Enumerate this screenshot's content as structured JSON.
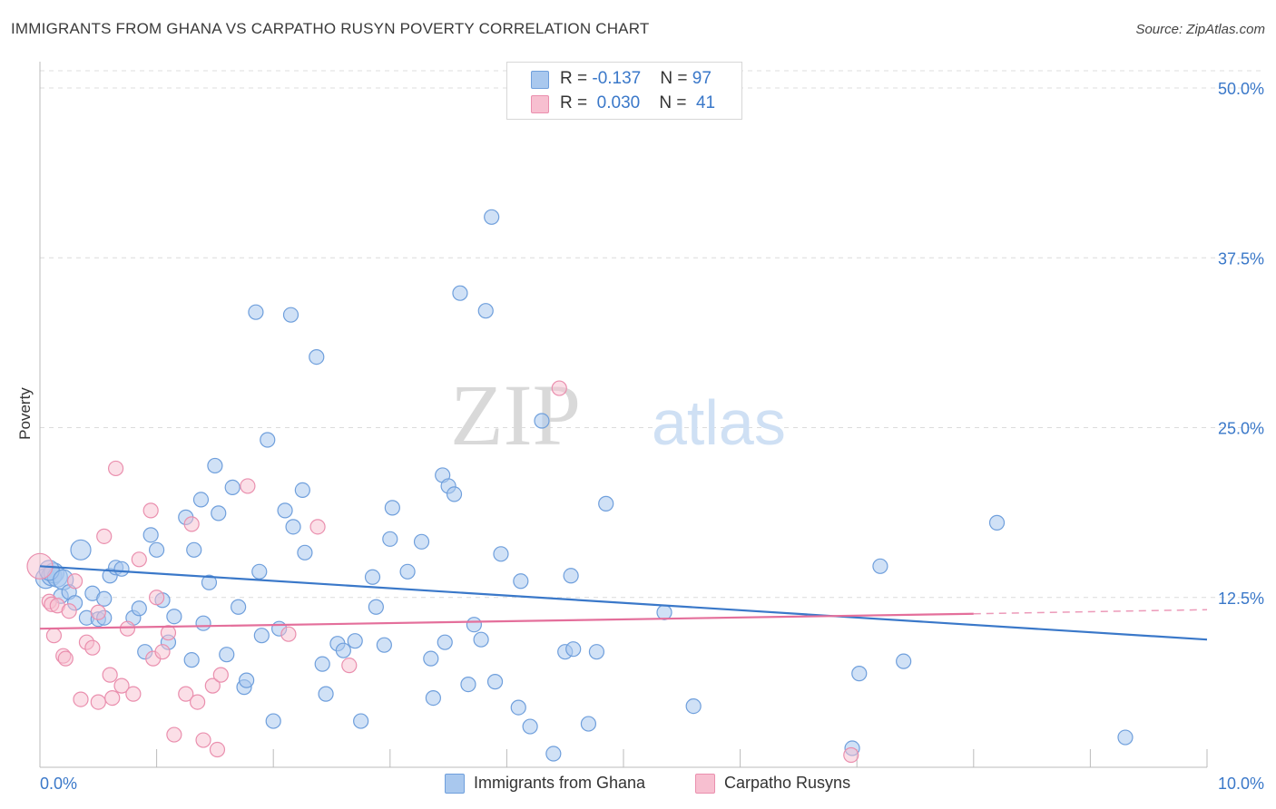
{
  "header": {
    "title": "IMMIGRANTS FROM GHANA VS CARPATHO RUSYN POVERTY CORRELATION CHART",
    "source": "Source: ZipAtlas.com"
  },
  "watermark": {
    "part1": "ZIP",
    "part2": "atlas"
  },
  "legend_top": {
    "rows": [
      {
        "r_label": "R = ",
        "r_value": "-0.137",
        "n_label": "N = ",
        "n_value": "97"
      },
      {
        "r_label": "R = ",
        "r_value": "0.030",
        "n_label": "N = ",
        "n_value": "41"
      }
    ]
  },
  "legend_bottom": {
    "items": [
      {
        "label": "Immigrants from Ghana"
      },
      {
        "label": "Carpatho Rusyns"
      }
    ]
  },
  "colors": {
    "blue_fill": "#a9c8ee",
    "blue_stroke": "#6f9fdc",
    "blue_line": "#3a78c9",
    "pink_fill": "#f7bfd0",
    "pink_stroke": "#ea8fae",
    "pink_line": "#e46f9b",
    "tick_label": "#3a78c9",
    "grid": "#dcdcdc"
  },
  "chart_data": {
    "type": "scatter",
    "title": "IMMIGRANTS FROM GHANA VS CARPATHO RUSYN POVERTY CORRELATION CHART",
    "xlabel": "",
    "ylabel": "Poverty",
    "xlim": [
      0,
      10
    ],
    "ylim": [
      0,
      50
    ],
    "x_tick_labels": [
      "0.0%",
      "10.0%"
    ],
    "y_ticks": [
      12.5,
      25.0,
      37.5,
      50.0
    ],
    "y_tick_labels": [
      "12.5%",
      "25.0%",
      "37.5%",
      "50.0%"
    ],
    "grid": true,
    "series": [
      {
        "name": "Immigrants from Ghana",
        "color": "blue",
        "R": -0.137,
        "N": 97,
        "trend": {
          "x": [
            0.0,
            10.0
          ],
          "y": [
            14.8,
            9.4
          ]
        },
        "points": [
          [
            0.05,
            13.9
          ],
          [
            0.1,
            14.1
          ],
          [
            0.12,
            14.3
          ],
          [
            0.15,
            14.0
          ],
          [
            0.08,
            14.5
          ],
          [
            0.2,
            13.8
          ],
          [
            0.18,
            12.6
          ],
          [
            0.25,
            12.9
          ],
          [
            0.3,
            12.1
          ],
          [
            0.35,
            16.0
          ],
          [
            0.45,
            12.8
          ],
          [
            0.4,
            11.0
          ],
          [
            0.5,
            10.9
          ],
          [
            0.55,
            12.4
          ],
          [
            0.6,
            14.1
          ],
          [
            0.65,
            14.7
          ],
          [
            0.7,
            14.6
          ],
          [
            0.8,
            11.0
          ],
          [
            0.85,
            11.7
          ],
          [
            0.9,
            8.5
          ],
          [
            0.95,
            17.1
          ],
          [
            1.0,
            16.0
          ],
          [
            1.05,
            12.3
          ],
          [
            1.1,
            9.2
          ],
          [
            1.15,
            11.1
          ],
          [
            1.25,
            18.4
          ],
          [
            1.3,
            7.9
          ],
          [
            1.32,
            16.0
          ],
          [
            1.38,
            19.7
          ],
          [
            1.4,
            10.6
          ],
          [
            1.45,
            13.6
          ],
          [
            1.5,
            22.2
          ],
          [
            1.53,
            18.7
          ],
          [
            1.6,
            8.3
          ],
          [
            1.65,
            20.6
          ],
          [
            1.7,
            11.8
          ],
          [
            1.75,
            5.9
          ],
          [
            1.77,
            6.4
          ],
          [
            1.85,
            33.5
          ],
          [
            1.88,
            14.4
          ],
          [
            1.9,
            9.7
          ],
          [
            1.95,
            24.1
          ],
          [
            2.0,
            3.4
          ],
          [
            2.05,
            10.2
          ],
          [
            2.1,
            18.9
          ],
          [
            2.15,
            33.3
          ],
          [
            2.17,
            17.7
          ],
          [
            2.25,
            20.4
          ],
          [
            2.27,
            15.8
          ],
          [
            2.37,
            30.2
          ],
          [
            2.42,
            7.6
          ],
          [
            2.45,
            5.4
          ],
          [
            2.55,
            9.1
          ],
          [
            2.6,
            8.6
          ],
          [
            2.7,
            9.3
          ],
          [
            2.75,
            3.4
          ],
          [
            2.85,
            14.0
          ],
          [
            2.88,
            11.8
          ],
          [
            2.95,
            9.0
          ],
          [
            3.0,
            16.8
          ],
          [
            3.02,
            19.1
          ],
          [
            3.15,
            14.4
          ],
          [
            3.27,
            16.6
          ],
          [
            3.35,
            8.0
          ],
          [
            3.37,
            5.1
          ],
          [
            3.45,
            21.5
          ],
          [
            3.47,
            9.2
          ],
          [
            3.5,
            20.7
          ],
          [
            3.55,
            20.1
          ],
          [
            3.6,
            34.9
          ],
          [
            3.67,
            6.1
          ],
          [
            3.72,
            10.5
          ],
          [
            3.78,
            9.4
          ],
          [
            3.82,
            33.6
          ],
          [
            3.87,
            40.5
          ],
          [
            3.9,
            6.3
          ],
          [
            3.95,
            15.7
          ],
          [
            4.1,
            4.4
          ],
          [
            4.12,
            13.7
          ],
          [
            4.2,
            3.0
          ],
          [
            4.3,
            25.5
          ],
          [
            4.5,
            8.5
          ],
          [
            4.57,
            8.7
          ],
          [
            4.55,
            14.1
          ],
          [
            4.7,
            3.2
          ],
          [
            4.77,
            8.5
          ],
          [
            4.85,
            19.4
          ],
          [
            5.35,
            11.4
          ],
          [
            5.6,
            4.5
          ],
          [
            6.96,
            1.4
          ],
          [
            7.02,
            6.9
          ],
          [
            7.2,
            14.8
          ],
          [
            7.4,
            7.8
          ],
          [
            8.2,
            18.0
          ],
          [
            9.3,
            2.2
          ],
          [
            4.4,
            1.0
          ],
          [
            0.55,
            11.0
          ]
        ]
      },
      {
        "name": "Carpatho Rusyns",
        "color": "pink",
        "R": 0.03,
        "N": 41,
        "trend": {
          "x": [
            0.0,
            8.0
          ],
          "y": [
            10.2,
            11.3
          ]
        },
        "trend_dashed_extension": {
          "x": [
            8.0,
            10.0
          ],
          "y": [
            11.3,
            11.6
          ]
        },
        "points": [
          [
            0.0,
            14.8
          ],
          [
            0.08,
            12.2
          ],
          [
            0.1,
            12.0
          ],
          [
            0.12,
            9.7
          ],
          [
            0.15,
            11.9
          ],
          [
            0.2,
            8.2
          ],
          [
            0.22,
            8.0
          ],
          [
            0.25,
            11.5
          ],
          [
            0.3,
            13.7
          ],
          [
            0.35,
            5.0
          ],
          [
            0.4,
            9.2
          ],
          [
            0.45,
            8.8
          ],
          [
            0.5,
            11.4
          ],
          [
            0.5,
            4.8
          ],
          [
            0.55,
            17.0
          ],
          [
            0.6,
            6.8
          ],
          [
            0.62,
            5.1
          ],
          [
            0.7,
            6.0
          ],
          [
            0.75,
            10.2
          ],
          [
            0.8,
            5.4
          ],
          [
            0.85,
            15.3
          ],
          [
            0.95,
            18.9
          ],
          [
            0.97,
            8.0
          ],
          [
            1.0,
            12.5
          ],
          [
            1.05,
            8.5
          ],
          [
            1.1,
            9.9
          ],
          [
            1.15,
            2.4
          ],
          [
            1.25,
            5.4
          ],
          [
            1.3,
            17.9
          ],
          [
            1.35,
            4.8
          ],
          [
            1.4,
            2.0
          ],
          [
            1.48,
            6.0
          ],
          [
            1.52,
            1.3
          ],
          [
            1.55,
            6.8
          ],
          [
            1.78,
            20.7
          ],
          [
            2.13,
            9.8
          ],
          [
            2.38,
            17.7
          ],
          [
            2.65,
            7.5
          ],
          [
            4.45,
            27.9
          ],
          [
            6.95,
            0.9
          ],
          [
            0.65,
            22.0
          ]
        ]
      }
    ]
  }
}
